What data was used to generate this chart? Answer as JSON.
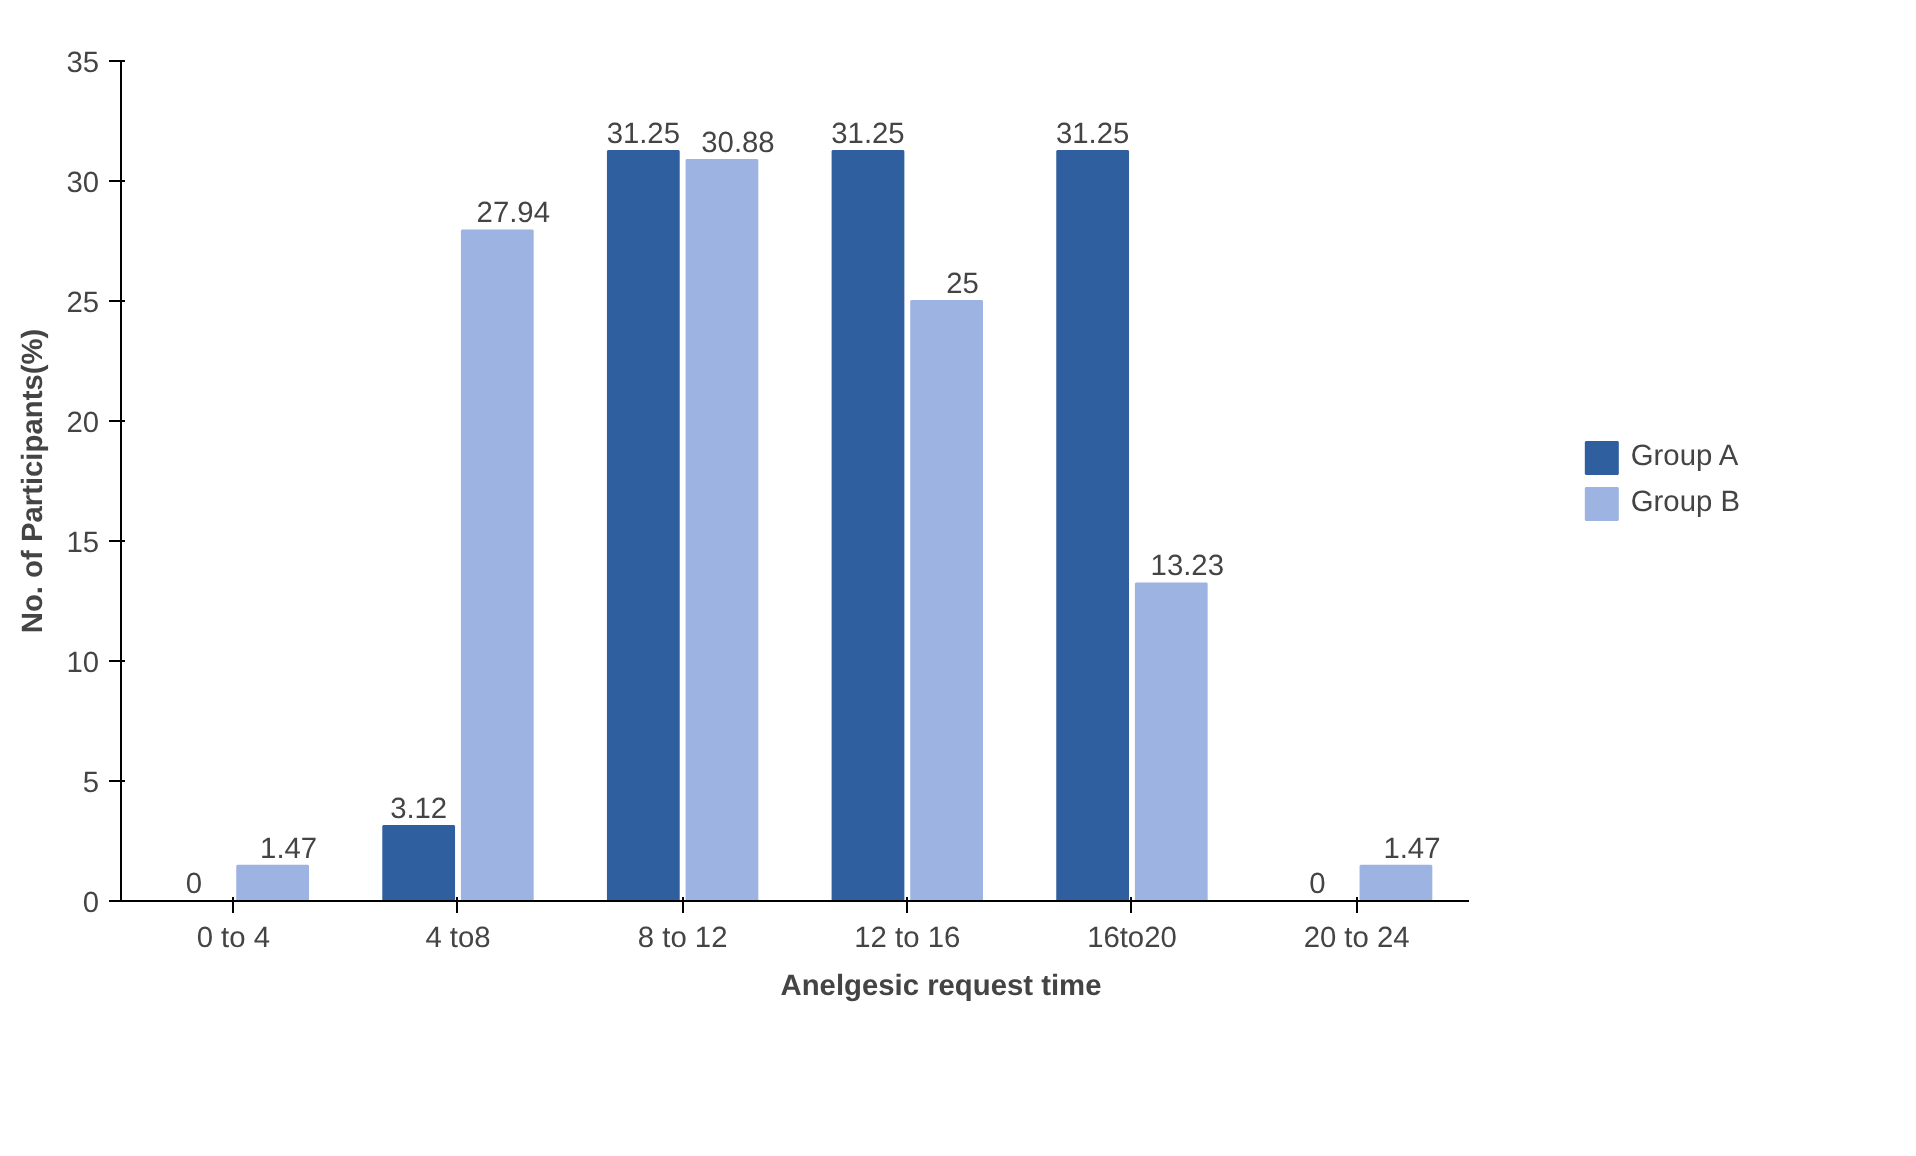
{
  "chart_data": {
    "type": "bar",
    "xlabel": "Anelgesic request time",
    "ylabel": "No. of Participants(%)",
    "categories": [
      "0 to 4",
      "4 to8",
      "8 to 12",
      "12 to 16",
      "16to20",
      "20 to 24"
    ],
    "series": [
      {
        "name": "Group A",
        "color": "#2f5f9e",
        "values": [
          0,
          3.12,
          31.25,
          31.25,
          31.25,
          0
        ]
      },
      {
        "name": "Group B",
        "color": "#9db3e2",
        "values": [
          1.47,
          27.94,
          30.88,
          25,
          13.23,
          1.47
        ]
      }
    ],
    "ylim": [
      0,
      35
    ],
    "yticks": [
      0,
      5,
      10,
      15,
      20,
      25,
      30,
      35
    ],
    "grid": false,
    "legend": "right",
    "data_labels": true
  }
}
